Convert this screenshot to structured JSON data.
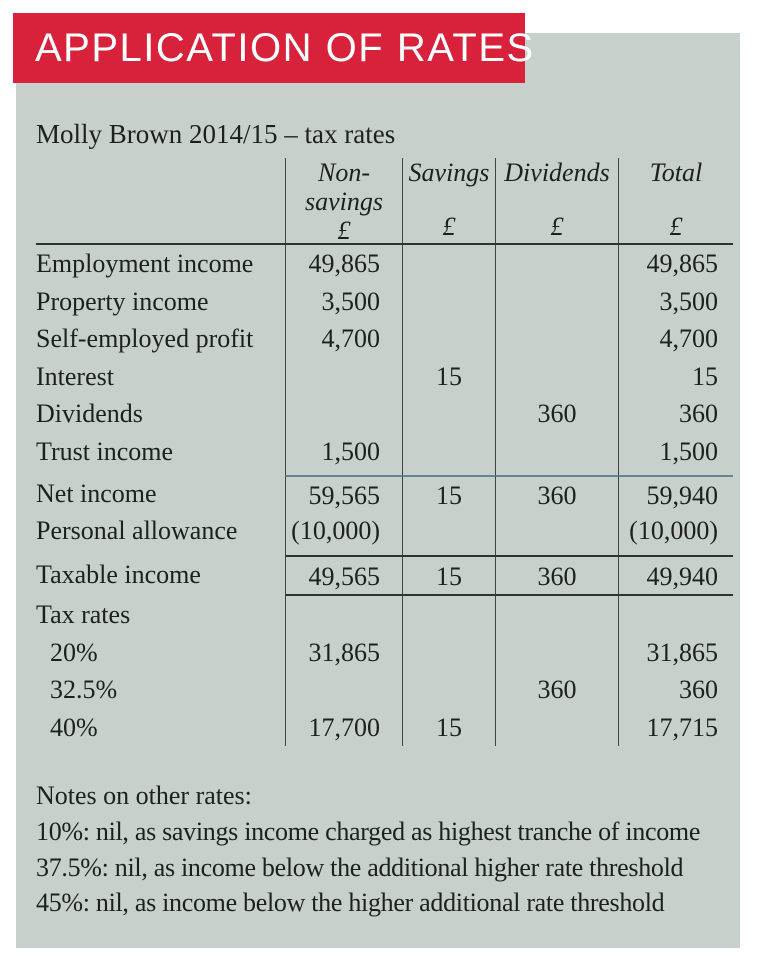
{
  "banner": {
    "title": "APPLICATION OF RATES",
    "bg_color": "#D8213A",
    "text_color": "#FFFFFF"
  },
  "panel": {
    "bg_color": "#C7D0CA"
  },
  "subtitle": "Molly Brown 2014/15 – tax rates",
  "table": {
    "columns": {
      "nonsavings_line1": "Non-",
      "nonsavings_line2": "savings",
      "savings": "Savings",
      "dividends": "Dividends",
      "total": "Total",
      "currency": "£"
    },
    "income_rows": [
      {
        "label": "Employment income",
        "nonsavings": "49,865",
        "savings": "",
        "dividends": "",
        "total": "49,865"
      },
      {
        "label": "Property income",
        "nonsavings": "3,500",
        "savings": "",
        "dividends": "",
        "total": "3,500"
      },
      {
        "label": "Self-employed profit",
        "nonsavings": "4,700",
        "savings": "",
        "dividends": "",
        "total": "4,700"
      },
      {
        "label": "Interest",
        "nonsavings": "",
        "savings": "15",
        "dividends": "",
        "total": "15"
      },
      {
        "label": "Dividends",
        "nonsavings": "",
        "savings": "",
        "dividends": "360",
        "total": "360"
      },
      {
        "label": "Trust income",
        "nonsavings": "1,500",
        "savings": "",
        "dividends": "",
        "total": "1,500"
      }
    ],
    "net_rows": [
      {
        "label": "Net income",
        "nonsavings": "59,565",
        "savings": "15",
        "dividends": "360",
        "total": "59,940"
      },
      {
        "label": "Personal allowance",
        "nonsavings": "(10,000)",
        "savings": "",
        "dividends": "",
        "total": "(10,000)"
      }
    ],
    "taxable_row": {
      "label": "Taxable income",
      "nonsavings": "49,565",
      "savings": "15",
      "dividends": "360",
      "total": "49,940"
    },
    "tax_rates_header": "Tax rates",
    "tax_rate_rows": [
      {
        "label": "20%",
        "nonsavings": "31,865",
        "savings": "",
        "dividends": "",
        "total": "31,865"
      },
      {
        "label": "32.5%",
        "nonsavings": "",
        "savings": "",
        "dividends": "360",
        "total": "360"
      },
      {
        "label": "40%",
        "nonsavings": "17,700",
        "savings": "15",
        "dividends": "",
        "total": "17,715"
      }
    ],
    "rule_colors": {
      "divider": "#3e4440",
      "section": "#2e3330",
      "teal": "#5d8798"
    }
  },
  "notes": {
    "title": "Notes on other rates:",
    "lines": [
      "10%: nil, as savings income charged as highest tranche of income",
      "37.5%: nil, as income below the additional higher rate threshold",
      "45%: nil, as income below the higher additional rate threshold"
    ]
  }
}
